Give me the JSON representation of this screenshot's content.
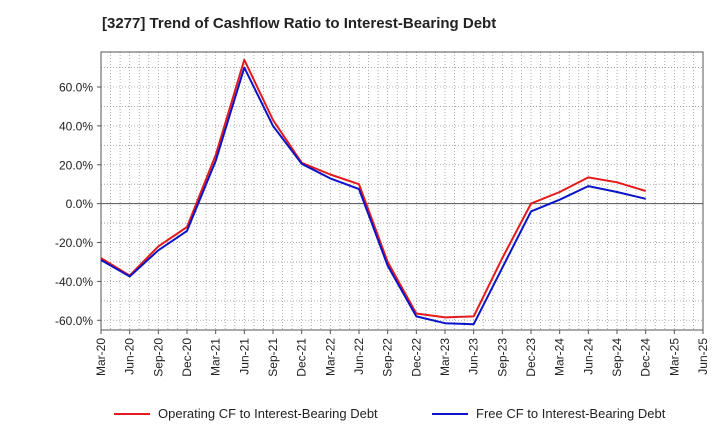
{
  "chart_data": {
    "type": "line",
    "title": "[3277]  Trend of Cashflow Ratio to Interest-Bearing Debt",
    "xlabel": "",
    "ylabel": "",
    "x": [
      "Mar-20",
      "Jun-20",
      "Sep-20",
      "Dec-20",
      "Mar-21",
      "Jun-21",
      "Sep-21",
      "Dec-21",
      "Mar-22",
      "Jun-22",
      "Sep-22",
      "Dec-22",
      "Mar-23",
      "Jun-23",
      "Sep-23",
      "Dec-23",
      "Mar-24",
      "Jun-24",
      "Sep-24",
      "Dec-24",
      "Mar-25",
      "Jun-25"
    ],
    "ylim": [
      -65,
      78
    ],
    "yticks": [
      -60,
      -40,
      -20,
      0,
      20,
      40,
      60
    ],
    "ytick_labels": [
      "-60.0%",
      "-40.0%",
      "-20.0%",
      "0.0%",
      "20.0%",
      "40.0%",
      "60.0%"
    ],
    "grid": true,
    "legend_position": "bottom",
    "series": [
      {
        "name": "Operating CF to Interest-Bearing Debt",
        "color": "#e41a1c",
        "values": [
          -28,
          -37,
          -22,
          -12,
          25,
          74,
          43,
          21,
          15,
          10,
          -30,
          -56.5,
          -58.5,
          -58,
          -28,
          0,
          6,
          13.5,
          11,
          6.5,
          null,
          null
        ]
      },
      {
        "name": "Free CF to Interest-Bearing Debt",
        "color": "#0a14c8",
        "values": [
          -29,
          -37.5,
          -24,
          -14,
          22,
          70,
          40,
          20.5,
          13,
          7.5,
          -32,
          -58,
          -61.5,
          -62,
          -33,
          -4,
          2,
          9,
          6,
          2.5,
          null,
          null
        ]
      }
    ]
  }
}
